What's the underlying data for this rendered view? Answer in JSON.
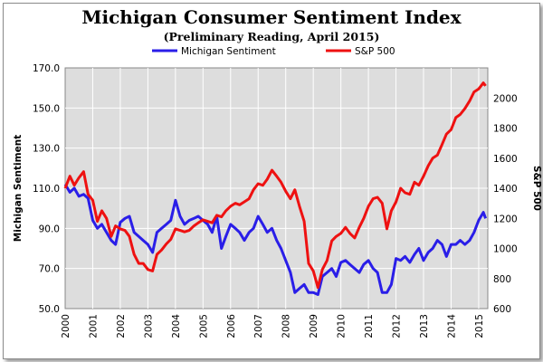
{
  "chart_data": {
    "type": "line",
    "title": "Michigan Consumer Sentiment Index",
    "subtitle": "(Preliminary Reading, April 2015)",
    "ylabel_left": "Michigan Sentiment",
    "ylabel_right": "S&P 500",
    "ylim_left": [
      50,
      170
    ],
    "yticks_left": [
      "50.0",
      "70.0",
      "90.0",
      "110.0",
      "130.0",
      "150.0",
      "170.0"
    ],
    "ylim_right": [
      600,
      2200
    ],
    "yticks_right": [
      "600",
      "800",
      "1000",
      "1200",
      "1400",
      "1600",
      "1800",
      "2000"
    ],
    "xlim": [
      2000,
      2015.33
    ],
    "xticks": [
      "2000",
      "2001",
      "2002",
      "2003",
      "2004",
      "2005",
      "2006",
      "2007",
      "2008",
      "2009",
      "2010",
      "2011",
      "2012",
      "2013",
      "2014",
      "2015"
    ],
    "grid": true,
    "legend_position": "top",
    "series": [
      {
        "name": "Michigan Sentiment",
        "axis": "left",
        "color": "#2a1ee8",
        "x": [
          2000.0,
          2000.17,
          2000.33,
          2000.5,
          2000.67,
          2000.83,
          2001.0,
          2001.17,
          2001.33,
          2001.5,
          2001.67,
          2001.83,
          2002.0,
          2002.17,
          2002.33,
          2002.5,
          2002.67,
          2002.83,
          2003.0,
          2003.17,
          2003.33,
          2003.5,
          2003.67,
          2003.83,
          2004.0,
          2004.17,
          2004.33,
          2004.5,
          2004.67,
          2004.83,
          2005.0,
          2005.17,
          2005.33,
          2005.5,
          2005.67,
          2005.83,
          2006.0,
          2006.17,
          2006.33,
          2006.5,
          2006.67,
          2006.83,
          2007.0,
          2007.17,
          2007.33,
          2007.5,
          2007.67,
          2007.83,
          2008.0,
          2008.17,
          2008.33,
          2008.5,
          2008.67,
          2008.83,
          2009.0,
          2009.17,
          2009.33,
          2009.5,
          2009.67,
          2009.83,
          2010.0,
          2010.17,
          2010.33,
          2010.5,
          2010.67,
          2010.83,
          2011.0,
          2011.17,
          2011.33,
          2011.5,
          2011.67,
          2011.83,
          2012.0,
          2012.17,
          2012.33,
          2012.5,
          2012.67,
          2012.83,
          2013.0,
          2013.17,
          2013.33,
          2013.5,
          2013.67,
          2013.83,
          2014.0,
          2014.17,
          2014.33,
          2014.5,
          2014.67,
          2014.83,
          2015.0,
          2015.17,
          2015.25
        ],
        "values": [
          112,
          108,
          110,
          106,
          107,
          105,
          94,
          90,
          92,
          88,
          84,
          82,
          93,
          95,
          96,
          88,
          86,
          84,
          82,
          78,
          88,
          90,
          92,
          94,
          104,
          96,
          92,
          94,
          95,
          96,
          94,
          92,
          88,
          96,
          80,
          86,
          92,
          90,
          88,
          84,
          88,
          90,
          96,
          92,
          88,
          90,
          84,
          80,
          74,
          68,
          58,
          60,
          62,
          58,
          58,
          57,
          66,
          68,
          70,
          66,
          73,
          74,
          72,
          70,
          68,
          72,
          74,
          70,
          68,
          58,
          58,
          62,
          75,
          74,
          76,
          73,
          77,
          80,
          74,
          78,
          80,
          84,
          82,
          76,
          82,
          82,
          84,
          82,
          84,
          88,
          94,
          98,
          95
        ]
      },
      {
        "name": "S&P 500",
        "axis": "right",
        "color": "#ee1111",
        "x": [
          2000.0,
          2000.17,
          2000.33,
          2000.5,
          2000.67,
          2000.83,
          2001.0,
          2001.17,
          2001.33,
          2001.5,
          2001.67,
          2001.83,
          2002.0,
          2002.17,
          2002.33,
          2002.5,
          2002.67,
          2002.83,
          2003.0,
          2003.17,
          2003.33,
          2003.5,
          2003.67,
          2003.83,
          2004.0,
          2004.17,
          2004.33,
          2004.5,
          2004.67,
          2004.83,
          2005.0,
          2005.17,
          2005.33,
          2005.5,
          2005.67,
          2005.83,
          2006.0,
          2006.17,
          2006.33,
          2006.5,
          2006.67,
          2006.83,
          2007.0,
          2007.17,
          2007.33,
          2007.5,
          2007.67,
          2007.83,
          2008.0,
          2008.17,
          2008.33,
          2008.5,
          2008.67,
          2008.83,
          2009.0,
          2009.17,
          2009.33,
          2009.5,
          2009.67,
          2009.83,
          2010.0,
          2010.17,
          2010.33,
          2010.5,
          2010.67,
          2010.83,
          2011.0,
          2011.17,
          2011.33,
          2011.5,
          2011.67,
          2011.83,
          2012.0,
          2012.17,
          2012.33,
          2012.5,
          2012.67,
          2012.83,
          2013.0,
          2013.17,
          2013.33,
          2013.5,
          2013.67,
          2013.83,
          2014.0,
          2014.17,
          2014.33,
          2014.5,
          2014.67,
          2014.83,
          2015.0,
          2015.17,
          2015.25
        ],
        "values": [
          1400,
          1480,
          1420,
          1470,
          1510,
          1360,
          1320,
          1180,
          1250,
          1200,
          1080,
          1150,
          1130,
          1120,
          1080,
          960,
          900,
          900,
          860,
          850,
          960,
          990,
          1030,
          1060,
          1130,
          1120,
          1110,
          1120,
          1150,
          1170,
          1190,
          1180,
          1170,
          1220,
          1210,
          1250,
          1280,
          1300,
          1290,
          1310,
          1330,
          1390,
          1430,
          1420,
          1460,
          1520,
          1480,
          1440,
          1380,
          1330,
          1390,
          1280,
          1180,
          900,
          850,
          740,
          860,
          920,
          1050,
          1080,
          1100,
          1140,
          1100,
          1070,
          1140,
          1200,
          1280,
          1330,
          1340,
          1300,
          1130,
          1250,
          1310,
          1400,
          1370,
          1360,
          1440,
          1420,
          1480,
          1550,
          1600,
          1620,
          1690,
          1760,
          1790,
          1870,
          1890,
          1930,
          1980,
          2040,
          2060,
          2100,
          2080
        ]
      }
    ]
  }
}
